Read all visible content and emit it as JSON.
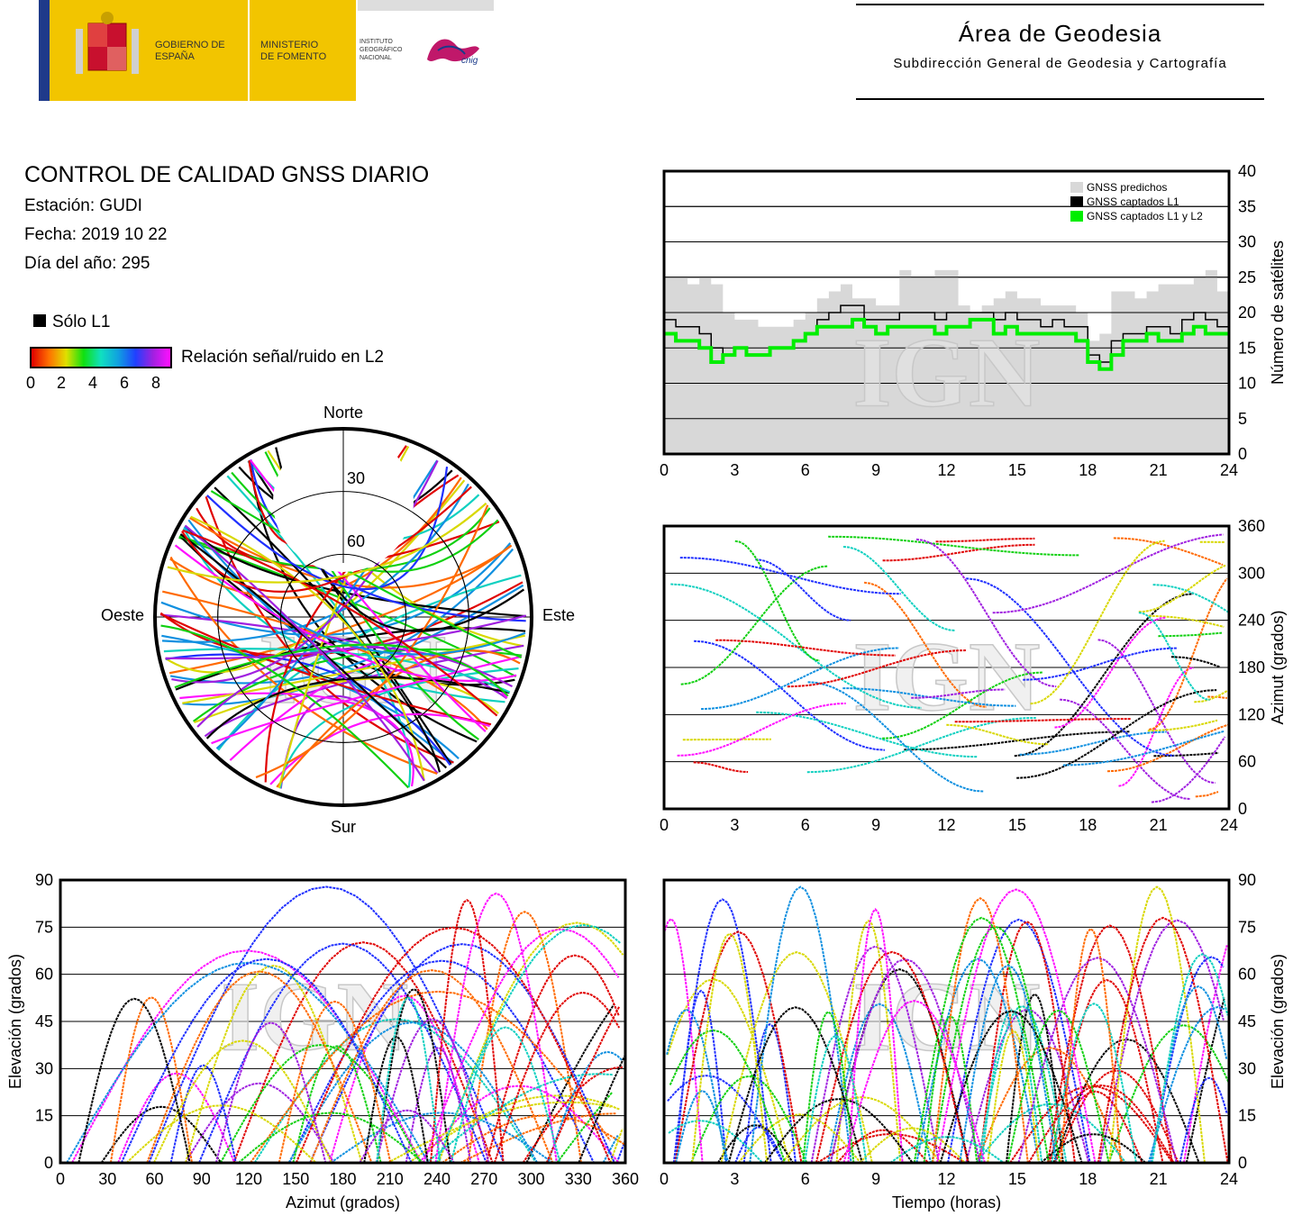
{
  "header": {
    "gobierno": "GOBIERNO DE ESPAÑA",
    "ministerio": "MINISTERIO DE FOMENTO",
    "instituto": "INSTITUTO GEOGRÁFICO NACIONAL",
    "cnig": "cnig",
    "area": "Área de Geodesia",
    "subdireccion": "Subdirección General de Geodesia y Cartografía"
  },
  "report": {
    "title": "CONTROL DE CALIDAD GNSS DIARIO",
    "station": "Estación: GUDI",
    "date": "Fecha: 2019 10 22",
    "doy": "Día del año: 295"
  },
  "legend": {
    "solo_l1": "Sólo L1",
    "snr_label": "Relación señal/ruido en L2",
    "snr_ticks": [
      "0",
      "2",
      "4",
      "6",
      "8"
    ],
    "colors": {
      "solo_l1": "#000000",
      "predicted": "#d8d8d8",
      "l1l2": "#00ee00"
    }
  },
  "watermark": "IGN",
  "chart_data": [
    {
      "type": "area",
      "name": "satellites",
      "ylabel": "Número de satélites",
      "xlim": [
        0,
        24
      ],
      "ylim": [
        0,
        40
      ],
      "xticks": [
        "0",
        "3",
        "6",
        "9",
        "12",
        "15",
        "18",
        "21",
        "24"
      ],
      "yticks": [
        "0",
        "5",
        "10",
        "15",
        "20",
        "25",
        "30",
        "35",
        "40"
      ],
      "legend": [
        "GNSS predichos",
        "GNSS captados L1",
        "GNSS captados L1 y L2"
      ],
      "grid": true,
      "x": [
        0,
        0.5,
        1,
        1.5,
        2,
        2.5,
        3,
        3.5,
        4,
        4.5,
        5,
        5.5,
        6,
        6.5,
        7,
        7.5,
        8,
        8.5,
        9,
        9.5,
        10,
        10.5,
        11,
        11.5,
        12,
        12.5,
        13,
        13.5,
        14,
        14.5,
        15,
        15.5,
        16,
        16.5,
        17,
        17.5,
        18,
        18.5,
        19,
        19.5,
        20,
        20.5,
        21,
        21.5,
        22,
        22.5,
        23,
        23.5,
        24
      ],
      "series": [
        {
          "name": "GNSS predichos",
          "values": [
            25,
            25,
            24,
            25,
            24,
            20,
            19,
            19,
            18,
            18,
            18,
            19,
            20,
            22,
            23,
            24,
            22,
            22,
            21,
            21,
            26,
            25,
            25,
            26,
            26,
            21,
            20,
            21,
            22,
            23,
            22,
            22,
            21,
            21,
            21,
            20,
            16,
            17,
            23,
            23,
            22,
            23,
            24,
            24,
            24,
            25,
            26,
            23,
            22
          ]
        },
        {
          "name": "GNSS captados L1",
          "values": [
            19,
            18,
            18,
            17,
            15,
            14,
            15,
            14,
            14,
            15,
            15,
            16,
            17,
            19,
            20,
            21,
            21,
            19,
            19,
            19,
            20,
            20,
            20,
            19,
            20,
            20,
            20,
            20,
            19,
            20,
            19,
            19,
            18,
            19,
            18,
            18,
            14,
            13,
            16,
            17,
            17,
            18,
            18,
            17,
            19,
            20,
            19,
            18,
            18
          ]
        },
        {
          "name": "GNSS captados L1 y L2",
          "values": [
            17,
            16,
            16,
            15,
            13,
            14,
            15,
            14,
            14,
            15,
            15,
            16,
            17,
            18,
            18,
            18,
            19,
            18,
            17,
            18,
            18,
            18,
            18,
            17,
            18,
            18,
            19,
            19,
            17,
            18,
            17,
            17,
            17,
            17,
            17,
            16,
            13,
            12,
            14,
            16,
            16,
            17,
            16,
            16,
            17,
            18,
            17,
            17,
            17
          ]
        }
      ]
    },
    {
      "type": "scatter",
      "name": "skyplot",
      "labels": {
        "n": "Norte",
        "s": "Sur",
        "e": "Este",
        "w": "Oeste"
      },
      "rings": [
        "30",
        "60"
      ]
    },
    {
      "type": "scatter",
      "name": "azimut-tiempo",
      "ylabel": "Azimut (grados)",
      "xlim": [
        0,
        24
      ],
      "ylim": [
        0,
        360
      ],
      "xticks": [
        "0",
        "3",
        "6",
        "9",
        "12",
        "15",
        "18",
        "21",
        "24"
      ],
      "yticks": [
        "0",
        "60",
        "120",
        "180",
        "240",
        "300",
        "360"
      ],
      "grid": true
    },
    {
      "type": "scatter",
      "name": "elevacion-azimut",
      "xlabel": "Azimut (grados)",
      "ylabel": "Elevación (grados)",
      "xlim": [
        0,
        360
      ],
      "ylim": [
        0,
        90
      ],
      "xticks": [
        "0",
        "30",
        "60",
        "90",
        "120",
        "150",
        "180",
        "210",
        "240",
        "270",
        "300",
        "330",
        "360"
      ],
      "yticks": [
        "0",
        "15",
        "30",
        "45",
        "60",
        "75",
        "90"
      ],
      "grid": true
    },
    {
      "type": "scatter",
      "name": "elevacion-tiempo",
      "xlabel": "Tiempo (horas)",
      "ylabel": "Elevación (grados)",
      "xlim": [
        0,
        24
      ],
      "ylim": [
        0,
        90
      ],
      "xticks": [
        "0",
        "3",
        "6",
        "9",
        "12",
        "15",
        "18",
        "21",
        "24"
      ],
      "yticks": [
        "0",
        "15",
        "30",
        "45",
        "60",
        "75",
        "90"
      ],
      "grid": true
    }
  ]
}
